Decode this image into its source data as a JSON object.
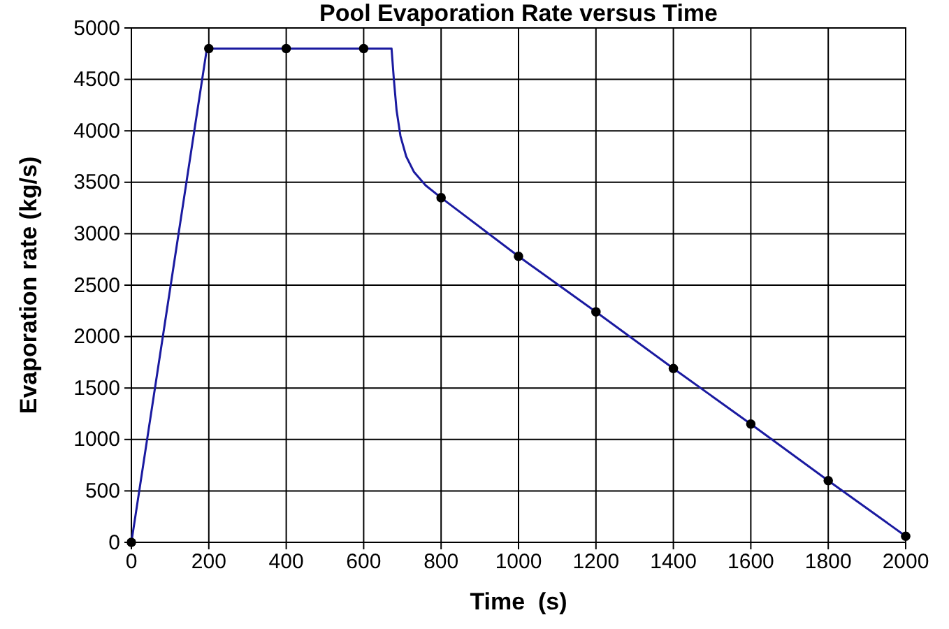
{
  "chart_data": {
    "type": "line",
    "title": "Pool Evaporation Rate versus Time",
    "xlabel": "Time  (s)",
    "ylabel": "Evaporation rate (kg/s)",
    "xlim": [
      0,
      2000
    ],
    "xticks": [
      0,
      200,
      400,
      600,
      800,
      1000,
      1200,
      1400,
      1600,
      1800,
      2000
    ],
    "ylim": [
      0,
      5000
    ],
    "yticks": [
      0,
      500,
      1000,
      1500,
      2000,
      2500,
      3000,
      3500,
      4000,
      4500,
      5000
    ],
    "grid": true,
    "series": [
      {
        "color": "#1a1aa0",
        "x": [
          0,
          195,
          400,
          600,
          672,
          678,
          685,
          695,
          710,
          730,
          760,
          800,
          1000,
          1200,
          1400,
          1600,
          1800,
          2000
        ],
        "values": [
          0,
          4800,
          4800,
          4800,
          4800,
          4500,
          4200,
          3950,
          3750,
          3600,
          3470,
          3350,
          2780,
          2240,
          1690,
          1150,
          600,
          60
        ]
      },
      {
        "type": "scatter",
        "color": "#000000",
        "marker": "circle",
        "x": [
          0,
          200,
          400,
          600,
          800,
          1000,
          1200,
          1400,
          1600,
          1800,
          2000
        ],
        "values": [
          0,
          4800,
          4800,
          4800,
          3350,
          2780,
          2240,
          1690,
          1150,
          600,
          60
        ]
      }
    ]
  }
}
